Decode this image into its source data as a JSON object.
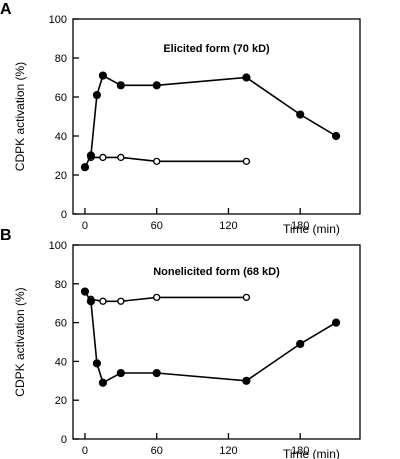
{
  "chart_data": [
    {
      "panel": "A",
      "type": "line",
      "title": "Elicited form (70 kD)",
      "xlabel": "Time (min)",
      "ylabel": "CDPK activation (%)",
      "xlim": [
        -10,
        230
      ],
      "ylim": [
        0,
        100
      ],
      "xticks": [
        0,
        60,
        120,
        180
      ],
      "yticks": [
        0,
        20,
        40,
        60,
        80,
        100
      ],
      "grid": false,
      "series": [
        {
          "marker": "filled-circle",
          "x": [
            0,
            5,
            10,
            15,
            30,
            60,
            135,
            180,
            210
          ],
          "y": [
            24,
            30,
            61,
            71,
            66,
            66,
            70,
            51,
            40
          ]
        },
        {
          "marker": "open-circle",
          "x": [
            5,
            15,
            30,
            60,
            135
          ],
          "y": [
            29,
            29,
            29,
            27,
            27
          ]
        }
      ]
    },
    {
      "panel": "B",
      "type": "line",
      "title": "Nonelicited form (68 kD)",
      "xlabel": "Time (min)",
      "ylabel": "CDPK activation (%)",
      "xlim": [
        -10,
        230
      ],
      "ylim": [
        0,
        100
      ],
      "xticks": [
        0,
        60,
        120,
        180
      ],
      "yticks": [
        0,
        20,
        40,
        60,
        80,
        100
      ],
      "grid": false,
      "series": [
        {
          "marker": "filled-circle",
          "x": [
            0,
            5,
            10,
            15,
            30,
            60,
            135,
            180,
            210
          ],
          "y": [
            76,
            71,
            39,
            29,
            34,
            34,
            30,
            49,
            60
          ]
        },
        {
          "marker": "open-circle",
          "x": [
            5,
            15,
            30,
            60,
            135
          ],
          "y": [
            72,
            71,
            71,
            73,
            73
          ]
        }
      ]
    }
  ]
}
